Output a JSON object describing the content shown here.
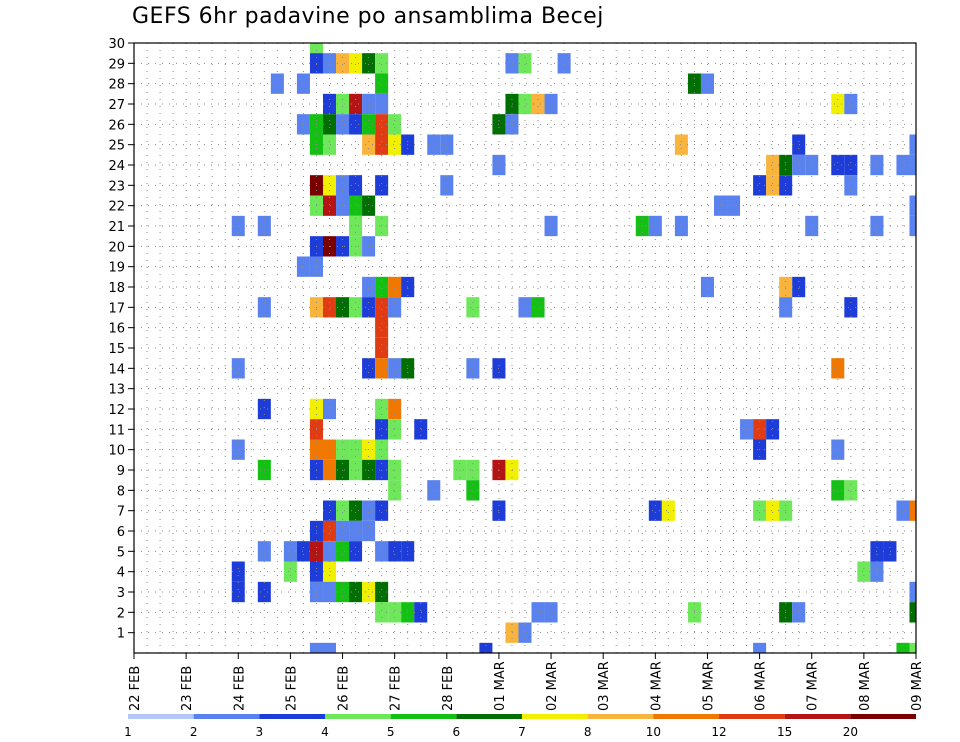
{
  "chart_data": {
    "type": "heatmap",
    "title": "GEFS 6hr padavine po ansamblima Becej",
    "y_ticks": [
      1,
      2,
      3,
      4,
      5,
      6,
      7,
      8,
      9,
      10,
      11,
      12,
      13,
      14,
      15,
      16,
      17,
      18,
      19,
      20,
      21,
      22,
      23,
      24,
      25,
      26,
      27,
      28,
      29,
      30
    ],
    "ylim": [
      0,
      30
    ],
    "xlim": [
      0,
      60
    ],
    "x_ticks": [
      {
        "pos": 0,
        "day": "22",
        "month": "FEB"
      },
      {
        "pos": 4,
        "day": "23",
        "month": "FEB"
      },
      {
        "pos": 8,
        "day": "24",
        "month": "FEB"
      },
      {
        "pos": 12,
        "day": "25",
        "month": "FEB"
      },
      {
        "pos": 16,
        "day": "26",
        "month": "FEB"
      },
      {
        "pos": 20,
        "day": "27",
        "month": "FEB"
      },
      {
        "pos": 24,
        "day": "28",
        "month": "FEB"
      },
      {
        "pos": 28,
        "day": "01",
        "month": "MAR"
      },
      {
        "pos": 32,
        "day": "02",
        "month": "MAR"
      },
      {
        "pos": 36,
        "day": "03",
        "month": "MAR"
      },
      {
        "pos": 40,
        "day": "04",
        "month": "MAR"
      },
      {
        "pos": 44,
        "day": "05",
        "month": "MAR"
      },
      {
        "pos": 48,
        "day": "06",
        "month": "MAR"
      },
      {
        "pos": 52,
        "day": "07",
        "month": "MAR"
      },
      {
        "pos": 56,
        "day": "08",
        "month": "MAR"
      },
      {
        "pos": 60,
        "day": "09",
        "month": "MAR"
      }
    ],
    "grid": true,
    "colorbar": {
      "labels": [
        "1",
        "2",
        "3",
        "4",
        "5",
        "6",
        "7",
        "8",
        "10",
        "12",
        "15",
        "20"
      ],
      "colors": [
        "#b4c8f8",
        "#5a82ee",
        "#1e3cd8",
        "#6ee85a",
        "#14c014",
        "#006e00",
        "#f0f000",
        "#f8b43c",
        "#f07800",
        "#e03c14",
        "#b41414",
        "#7a0000"
      ]
    },
    "cells": [
      {
        "x": 14,
        "y": 30,
        "c": 3
      },
      {
        "x": 14,
        "y": 29,
        "c": 2
      },
      {
        "x": 15,
        "y": 29,
        "c": 1
      },
      {
        "x": 16,
        "y": 29,
        "c": 7
      },
      {
        "x": 17,
        "y": 29,
        "c": 6
      },
      {
        "x": 18,
        "y": 29,
        "c": 5
      },
      {
        "x": 19,
        "y": 29,
        "c": 3
      },
      {
        "x": 29,
        "y": 29,
        "c": 1
      },
      {
        "x": 30,
        "y": 29,
        "c": 3
      },
      {
        "x": 33,
        "y": 29,
        "c": 1
      },
      {
        "x": 11,
        "y": 28,
        "c": 1
      },
      {
        "x": 13,
        "y": 28,
        "c": 1
      },
      {
        "x": 19,
        "y": 28,
        "c": 4
      },
      {
        "x": 43,
        "y": 28,
        "c": 5
      },
      {
        "x": 44,
        "y": 28,
        "c": 1
      },
      {
        "x": 15,
        "y": 27,
        "c": 2
      },
      {
        "x": 16,
        "y": 27,
        "c": 3
      },
      {
        "x": 17,
        "y": 27,
        "c": 10
      },
      {
        "x": 18,
        "y": 27,
        "c": 1
      },
      {
        "x": 19,
        "y": 27,
        "c": 1
      },
      {
        "x": 29,
        "y": 27,
        "c": 5
      },
      {
        "x": 30,
        "y": 27,
        "c": 3
      },
      {
        "x": 31,
        "y": 27,
        "c": 7
      },
      {
        "x": 32,
        "y": 27,
        "c": 1
      },
      {
        "x": 54,
        "y": 27,
        "c": 6
      },
      {
        "x": 55,
        "y": 27,
        "c": 1
      },
      {
        "x": 13,
        "y": 26,
        "c": 1
      },
      {
        "x": 14,
        "y": 26,
        "c": 4
      },
      {
        "x": 15,
        "y": 26,
        "c": 5
      },
      {
        "x": 16,
        "y": 26,
        "c": 1
      },
      {
        "x": 17,
        "y": 26,
        "c": 2
      },
      {
        "x": 18,
        "y": 26,
        "c": 4
      },
      {
        "x": 19,
        "y": 26,
        "c": 9
      },
      {
        "x": 20,
        "y": 26,
        "c": 3
      },
      {
        "x": 28,
        "y": 26,
        "c": 5
      },
      {
        "x": 29,
        "y": 26,
        "c": 1
      },
      {
        "x": 14,
        "y": 25,
        "c": 4
      },
      {
        "x": 15,
        "y": 25,
        "c": 3
      },
      {
        "x": 18,
        "y": 25,
        "c": 7
      },
      {
        "x": 19,
        "y": 25,
        "c": 9
      },
      {
        "x": 20,
        "y": 25,
        "c": 6
      },
      {
        "x": 21,
        "y": 25,
        "c": 2
      },
      {
        "x": 23,
        "y": 25,
        "c": 1
      },
      {
        "x": 24,
        "y": 25,
        "c": 1
      },
      {
        "x": 42,
        "y": 25,
        "c": 7
      },
      {
        "x": 51,
        "y": 25,
        "c": 2
      },
      {
        "x": 60,
        "y": 25,
        "c": 1
      },
      {
        "x": 28,
        "y": 24,
        "c": 1
      },
      {
        "x": 49,
        "y": 24,
        "c": 7
      },
      {
        "x": 50,
        "y": 24,
        "c": 5
      },
      {
        "x": 51,
        "y": 24,
        "c": 1
      },
      {
        "x": 52,
        "y": 24,
        "c": 1
      },
      {
        "x": 54,
        "y": 24,
        "c": 2
      },
      {
        "x": 55,
        "y": 24,
        "c": 2
      },
      {
        "x": 57,
        "y": 24,
        "c": 1
      },
      {
        "x": 59,
        "y": 24,
        "c": 1
      },
      {
        "x": 60,
        "y": 24,
        "c": 1
      },
      {
        "x": 14,
        "y": 23,
        "c": 11
      },
      {
        "x": 15,
        "y": 23,
        "c": 6
      },
      {
        "x": 16,
        "y": 23,
        "c": 1
      },
      {
        "x": 17,
        "y": 23,
        "c": 2
      },
      {
        "x": 19,
        "y": 23,
        "c": 2
      },
      {
        "x": 24,
        "y": 23,
        "c": 1
      },
      {
        "x": 48,
        "y": 23,
        "c": 2
      },
      {
        "x": 49,
        "y": 23,
        "c": 7
      },
      {
        "x": 50,
        "y": 23,
        "c": 2
      },
      {
        "x": 55,
        "y": 23,
        "c": 1
      },
      {
        "x": 14,
        "y": 22,
        "c": 3
      },
      {
        "x": 15,
        "y": 22,
        "c": 10
      },
      {
        "x": 16,
        "y": 22,
        "c": 1
      },
      {
        "x": 17,
        "y": 22,
        "c": 4
      },
      {
        "x": 18,
        "y": 22,
        "c": 5
      },
      {
        "x": 45,
        "y": 22,
        "c": 1
      },
      {
        "x": 46,
        "y": 22,
        "c": 1
      },
      {
        "x": 60,
        "y": 22,
        "c": 1
      },
      {
        "x": 8,
        "y": 21,
        "c": 1
      },
      {
        "x": 10,
        "y": 21,
        "c": 1
      },
      {
        "x": 17,
        "y": 21,
        "c": 3
      },
      {
        "x": 19,
        "y": 21,
        "c": 3
      },
      {
        "x": 32,
        "y": 21,
        "c": 1
      },
      {
        "x": 39,
        "y": 21,
        "c": 4
      },
      {
        "x": 40,
        "y": 21,
        "c": 1
      },
      {
        "x": 42,
        "y": 21,
        "c": 1
      },
      {
        "x": 52,
        "y": 21,
        "c": 1
      },
      {
        "x": 57,
        "y": 21,
        "c": 1
      },
      {
        "x": 60,
        "y": 21,
        "c": 1
      },
      {
        "x": 14,
        "y": 20,
        "c": 2
      },
      {
        "x": 15,
        "y": 20,
        "c": 11
      },
      {
        "x": 16,
        "y": 20,
        "c": 2
      },
      {
        "x": 17,
        "y": 20,
        "c": 3
      },
      {
        "x": 18,
        "y": 20,
        "c": 1
      },
      {
        "x": 13,
        "y": 19,
        "c": 1
      },
      {
        "x": 14,
        "y": 19,
        "c": 1
      },
      {
        "x": 18,
        "y": 18,
        "c": 1
      },
      {
        "x": 19,
        "y": 18,
        "c": 4
      },
      {
        "x": 20,
        "y": 18,
        "c": 8
      },
      {
        "x": 21,
        "y": 18,
        "c": 2
      },
      {
        "x": 44,
        "y": 18,
        "c": 1
      },
      {
        "x": 50,
        "y": 18,
        "c": 7
      },
      {
        "x": 51,
        "y": 18,
        "c": 2
      },
      {
        "x": 10,
        "y": 17,
        "c": 1
      },
      {
        "x": 14,
        "y": 17,
        "c": 7
      },
      {
        "x": 15,
        "y": 17,
        "c": 9
      },
      {
        "x": 16,
        "y": 17,
        "c": 5
      },
      {
        "x": 17,
        "y": 17,
        "c": 3
      },
      {
        "x": 18,
        "y": 17,
        "c": 2
      },
      {
        "x": 19,
        "y": 17,
        "c": 9
      },
      {
        "x": 20,
        "y": 17,
        "c": 1
      },
      {
        "x": 26,
        "y": 17,
        "c": 3
      },
      {
        "x": 30,
        "y": 17,
        "c": 1
      },
      {
        "x": 31,
        "y": 17,
        "c": 4
      },
      {
        "x": 50,
        "y": 17,
        "c": 1
      },
      {
        "x": 55,
        "y": 17,
        "c": 2
      },
      {
        "x": 19,
        "y": 16,
        "c": 9
      },
      {
        "x": 19,
        "y": 15,
        "c": 9
      },
      {
        "x": 8,
        "y": 14,
        "c": 1
      },
      {
        "x": 18,
        "y": 14,
        "c": 2
      },
      {
        "x": 19,
        "y": 14,
        "c": 8
      },
      {
        "x": 20,
        "y": 14,
        "c": 1
      },
      {
        "x": 21,
        "y": 14,
        "c": 5
      },
      {
        "x": 26,
        "y": 14,
        "c": 1
      },
      {
        "x": 28,
        "y": 14,
        "c": 2
      },
      {
        "x": 54,
        "y": 14,
        "c": 8
      },
      {
        "x": 10,
        "y": 12,
        "c": 2
      },
      {
        "x": 14,
        "y": 12,
        "c": 6
      },
      {
        "x": 15,
        "y": 12,
        "c": 1
      },
      {
        "x": 19,
        "y": 12,
        "c": 3
      },
      {
        "x": 20,
        "y": 12,
        "c": 8
      },
      {
        "x": 14,
        "y": 11,
        "c": 9
      },
      {
        "x": 19,
        "y": 11,
        "c": 2
      },
      {
        "x": 20,
        "y": 11,
        "c": 3
      },
      {
        "x": 22,
        "y": 11,
        "c": 2
      },
      {
        "x": 47,
        "y": 11,
        "c": 1
      },
      {
        "x": 48,
        "y": 11,
        "c": 9
      },
      {
        "x": 49,
        "y": 11,
        "c": 2
      },
      {
        "x": 8,
        "y": 10,
        "c": 1
      },
      {
        "x": 14,
        "y": 10,
        "c": 8
      },
      {
        "x": 15,
        "y": 10,
        "c": 8
      },
      {
        "x": 16,
        "y": 10,
        "c": 3
      },
      {
        "x": 17,
        "y": 10,
        "c": 3
      },
      {
        "x": 18,
        "y": 10,
        "c": 6
      },
      {
        "x": 19,
        "y": 10,
        "c": 3
      },
      {
        "x": 48,
        "y": 10,
        "c": 2
      },
      {
        "x": 54,
        "y": 10,
        "c": 1
      },
      {
        "x": 10,
        "y": 9,
        "c": 4
      },
      {
        "x": 14,
        "y": 9,
        "c": 2
      },
      {
        "x": 15,
        "y": 9,
        "c": 8
      },
      {
        "x": 16,
        "y": 9,
        "c": 5
      },
      {
        "x": 17,
        "y": 9,
        "c": 3
      },
      {
        "x": 18,
        "y": 9,
        "c": 5
      },
      {
        "x": 19,
        "y": 9,
        "c": 2
      },
      {
        "x": 20,
        "y": 9,
        "c": 3
      },
      {
        "x": 25,
        "y": 9,
        "c": 3
      },
      {
        "x": 26,
        "y": 9,
        "c": 3
      },
      {
        "x": 28,
        "y": 9,
        "c": 10
      },
      {
        "x": 29,
        "y": 9,
        "c": 6
      },
      {
        "x": 20,
        "y": 8,
        "c": 3
      },
      {
        "x": 23,
        "y": 8,
        "c": 1
      },
      {
        "x": 26,
        "y": 8,
        "c": 4
      },
      {
        "x": 54,
        "y": 8,
        "c": 4
      },
      {
        "x": 55,
        "y": 8,
        "c": 3
      },
      {
        "x": 15,
        "y": 7,
        "c": 2
      },
      {
        "x": 16,
        "y": 7,
        "c": 3
      },
      {
        "x": 17,
        "y": 7,
        "c": 5
      },
      {
        "x": 18,
        "y": 7,
        "c": 1
      },
      {
        "x": 19,
        "y": 7,
        "c": 2
      },
      {
        "x": 28,
        "y": 7,
        "c": 2
      },
      {
        "x": 40,
        "y": 7,
        "c": 2
      },
      {
        "x": 41,
        "y": 7,
        "c": 6
      },
      {
        "x": 48,
        "y": 7,
        "c": 3
      },
      {
        "x": 49,
        "y": 7,
        "c": 6
      },
      {
        "x": 50,
        "y": 7,
        "c": 3
      },
      {
        "x": 59,
        "y": 7,
        "c": 1
      },
      {
        "x": 60,
        "y": 7,
        "c": 8
      },
      {
        "x": 14,
        "y": 6,
        "c": 2
      },
      {
        "x": 15,
        "y": 6,
        "c": 9
      },
      {
        "x": 16,
        "y": 6,
        "c": 1
      },
      {
        "x": 17,
        "y": 6,
        "c": 1
      },
      {
        "x": 18,
        "y": 6,
        "c": 1
      },
      {
        "x": 10,
        "y": 5,
        "c": 1
      },
      {
        "x": 12,
        "y": 5,
        "c": 1
      },
      {
        "x": 13,
        "y": 5,
        "c": 2
      },
      {
        "x": 14,
        "y": 5,
        "c": 10
      },
      {
        "x": 15,
        "y": 5,
        "c": 1
      },
      {
        "x": 16,
        "y": 5,
        "c": 4
      },
      {
        "x": 17,
        "y": 5,
        "c": 2
      },
      {
        "x": 19,
        "y": 5,
        "c": 1
      },
      {
        "x": 20,
        "y": 5,
        "c": 2
      },
      {
        "x": 21,
        "y": 5,
        "c": 2
      },
      {
        "x": 57,
        "y": 5,
        "c": 2
      },
      {
        "x": 58,
        "y": 5,
        "c": 2
      },
      {
        "x": 8,
        "y": 4,
        "c": 2
      },
      {
        "x": 12,
        "y": 4,
        "c": 3
      },
      {
        "x": 14,
        "y": 4,
        "c": 2
      },
      {
        "x": 15,
        "y": 4,
        "c": 6
      },
      {
        "x": 56,
        "y": 4,
        "c": 3
      },
      {
        "x": 57,
        "y": 4,
        "c": 1
      },
      {
        "x": 8,
        "y": 3,
        "c": 2
      },
      {
        "x": 10,
        "y": 3,
        "c": 2
      },
      {
        "x": 14,
        "y": 3,
        "c": 1
      },
      {
        "x": 15,
        "y": 3,
        "c": 1
      },
      {
        "x": 16,
        "y": 3,
        "c": 4
      },
      {
        "x": 17,
        "y": 3,
        "c": 5
      },
      {
        "x": 18,
        "y": 3,
        "c": 6
      },
      {
        "x": 19,
        "y": 3,
        "c": 5
      },
      {
        "x": 60,
        "y": 3,
        "c": 1
      },
      {
        "x": 19,
        "y": 2,
        "c": 3
      },
      {
        "x": 20,
        "y": 2,
        "c": 3
      },
      {
        "x": 21,
        "y": 2,
        "c": 4
      },
      {
        "x": 22,
        "y": 2,
        "c": 2
      },
      {
        "x": 31,
        "y": 2,
        "c": 1
      },
      {
        "x": 32,
        "y": 2,
        "c": 1
      },
      {
        "x": 43,
        "y": 2,
        "c": 3
      },
      {
        "x": 50,
        "y": 2,
        "c": 5
      },
      {
        "x": 51,
        "y": 2,
        "c": 1
      },
      {
        "x": 60,
        "y": 2,
        "c": 5
      },
      {
        "x": 29,
        "y": 1,
        "c": 7
      },
      {
        "x": 30,
        "y": 1,
        "c": 1
      },
      {
        "x": 14,
        "y": 0,
        "c": 1
      },
      {
        "x": 15,
        "y": 0,
        "c": 1
      },
      {
        "x": 27,
        "y": 0,
        "c": 2
      },
      {
        "x": 48,
        "y": 0,
        "c": 1
      },
      {
        "x": 59,
        "y": 0,
        "c": 4
      },
      {
        "x": 60,
        "y": 0,
        "c": 3
      }
    ]
  }
}
